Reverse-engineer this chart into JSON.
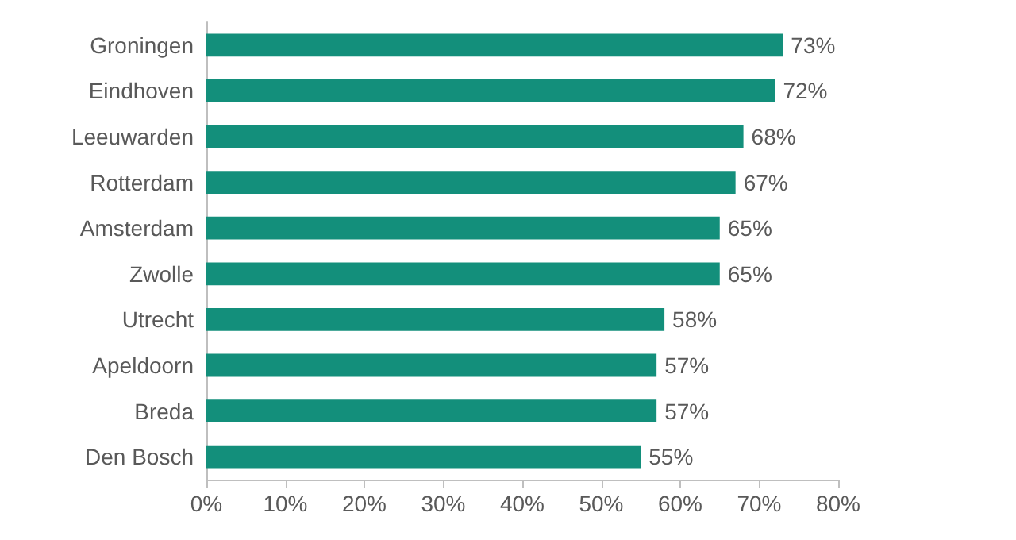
{
  "chart_data": {
    "type": "bar",
    "orientation": "horizontal",
    "categories": [
      "Groningen",
      "Eindhoven",
      "Leeuwarden",
      "Rotterdam",
      "Amsterdam",
      "Zwolle",
      "Utrecht",
      "Apeldoorn",
      "Breda",
      "Den Bosch"
    ],
    "values": [
      73,
      72,
      68,
      67,
      65,
      65,
      58,
      57,
      57,
      55
    ],
    "value_labels": [
      "73%",
      "72%",
      "68%",
      "67%",
      "65%",
      "65%",
      "58%",
      "57%",
      "57%",
      "55%"
    ],
    "color": "#138f7b",
    "xlim": [
      0,
      80
    ],
    "xticks": [
      {
        "value": 0,
        "label": "0%"
      },
      {
        "value": 10,
        "label": "10%"
      },
      {
        "value": 20,
        "label": "20%"
      },
      {
        "value": 30,
        "label": "30%"
      },
      {
        "value": 40,
        "label": "40%"
      },
      {
        "value": 50,
        "label": "50%"
      },
      {
        "value": 60,
        "label": "60%"
      },
      {
        "value": 70,
        "label": "70%"
      },
      {
        "value": 80,
        "label": "80%"
      }
    ],
    "grid": false
  }
}
